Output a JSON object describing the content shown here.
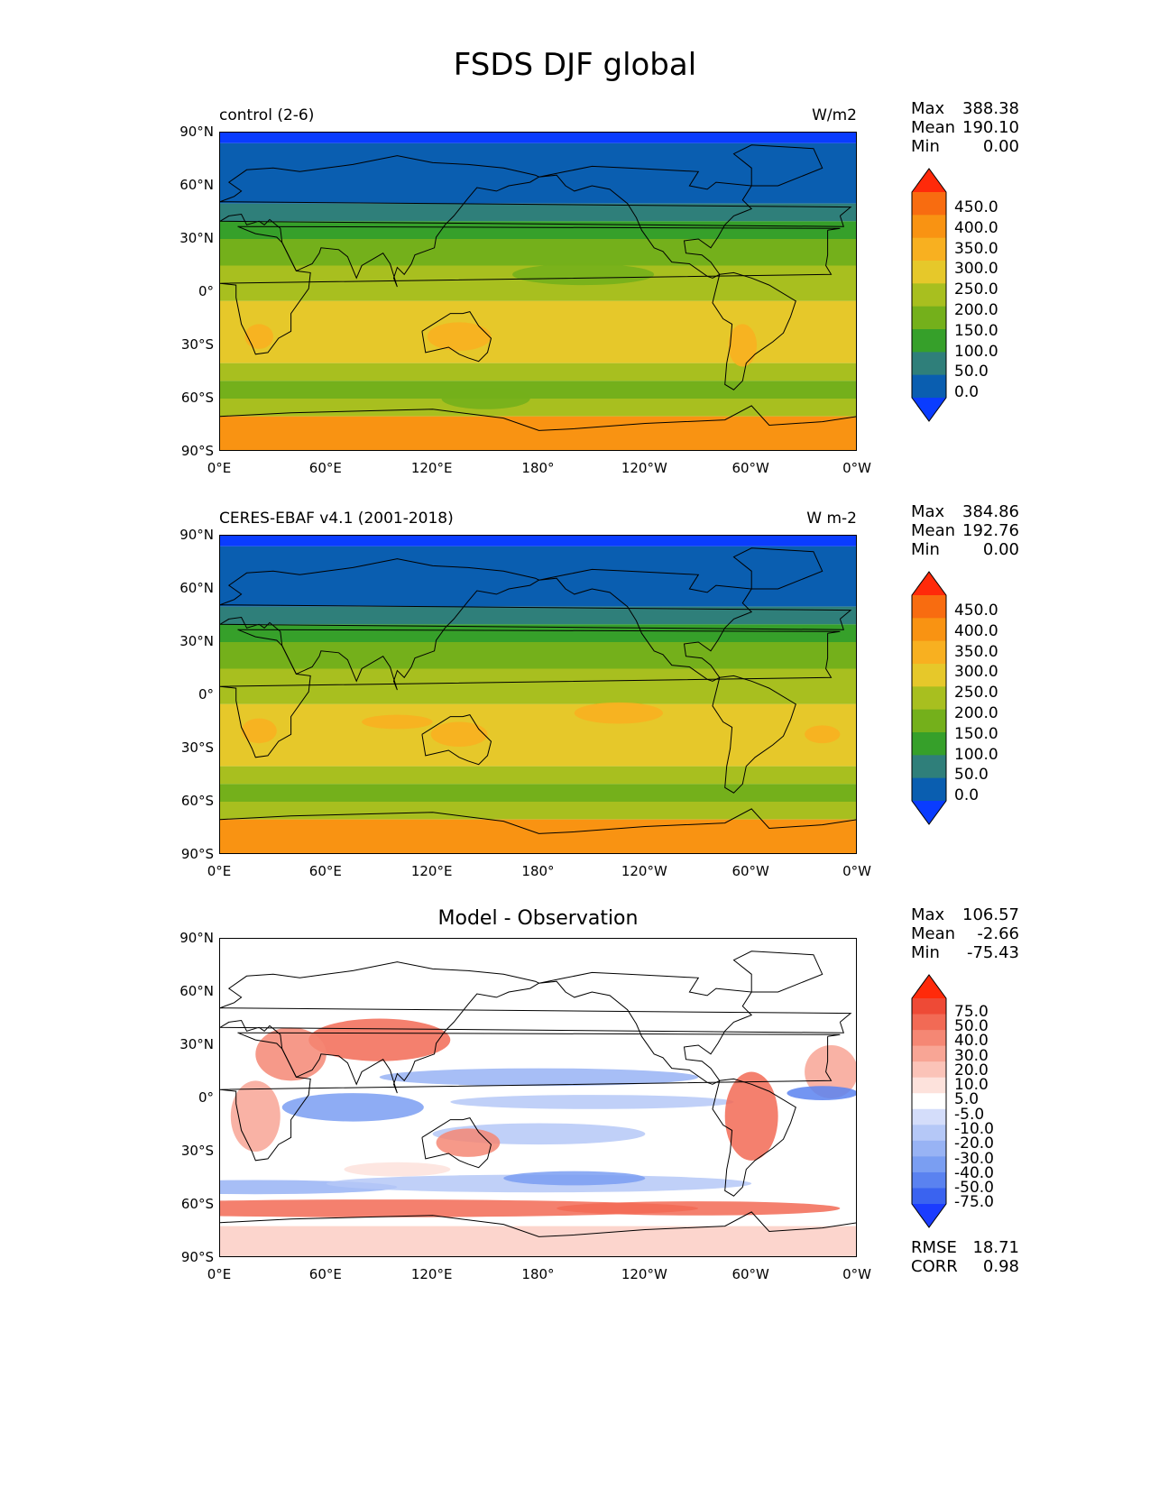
{
  "title": "FSDS DJF global",
  "lat_ticks": [
    "90°N",
    "60°N",
    "30°N",
    "0°",
    "30°S",
    "60°S",
    "90°S"
  ],
  "lon_ticks": [
    "0°E",
    "60°E",
    "120°E",
    "180°",
    "120°W",
    "60°W",
    "0°W"
  ],
  "panels": [
    {
      "left_title": "control (2-6)",
      "right_title": "W/m2",
      "center_title": "",
      "stats": [
        {
          "label": "Max",
          "value": "388.38"
        },
        {
          "label": "Mean",
          "value": "190.10"
        },
        {
          "label": "Min",
          "value": "0.00"
        }
      ],
      "colorbar_labels": [
        "450.0",
        "400.0",
        "350.0",
        "300.0",
        "250.0",
        "200.0",
        "150.0",
        "100.0",
        "50.0",
        "0.0"
      ]
    },
    {
      "left_title": "CERES-EBAF v4.1 (2001-2018)",
      "right_title": "W m-2",
      "center_title": "",
      "stats": [
        {
          "label": "Max",
          "value": "384.86"
        },
        {
          "label": "Mean",
          "value": "192.76"
        },
        {
          "label": "Min",
          "value": "0.00"
        }
      ],
      "colorbar_labels": [
        "450.0",
        "400.0",
        "350.0",
        "300.0",
        "250.0",
        "200.0",
        "150.0",
        "100.0",
        "50.0",
        "0.0"
      ]
    },
    {
      "left_title": "",
      "right_title": "",
      "center_title": "Model - Observation",
      "stats": [
        {
          "label": "Max",
          "value": "106.57"
        },
        {
          "label": "Mean",
          "value": "-2.66"
        },
        {
          "label": "Min",
          "value": "-75.43"
        }
      ],
      "colorbar_labels": [
        "75.0",
        "50.0",
        "40.0",
        "30.0",
        "20.0",
        "10.0",
        "5.0",
        "-5.0",
        "-10.0",
        "-20.0",
        "-30.0",
        "-40.0",
        "-50.0",
        "-75.0"
      ],
      "metrics": [
        {
          "label": "RMSE",
          "value": "18.71"
        },
        {
          "label": "CORR",
          "value": "0.98"
        }
      ]
    }
  ],
  "colors": {
    "abs_scale": [
      "#0a3cff",
      "#0a5eb0",
      "#2f7f7a",
      "#36a02a",
      "#74b01b",
      "#a8bf1f",
      "#e6c82a",
      "#f8b020",
      "#f99312",
      "#f86c10",
      "#ff2a0a"
    ],
    "diff_scale": [
      "#1b3cff",
      "#3a63f0",
      "#5a82f0",
      "#7a9ef2",
      "#98b3f4",
      "#b5c8f7",
      "#d4ddfa",
      "#ffffff",
      "#fde2dc",
      "#fbc3b8",
      "#f8a595",
      "#f58774",
      "#f26a55",
      "#ee4a36",
      "#ff2a0a"
    ]
  }
}
